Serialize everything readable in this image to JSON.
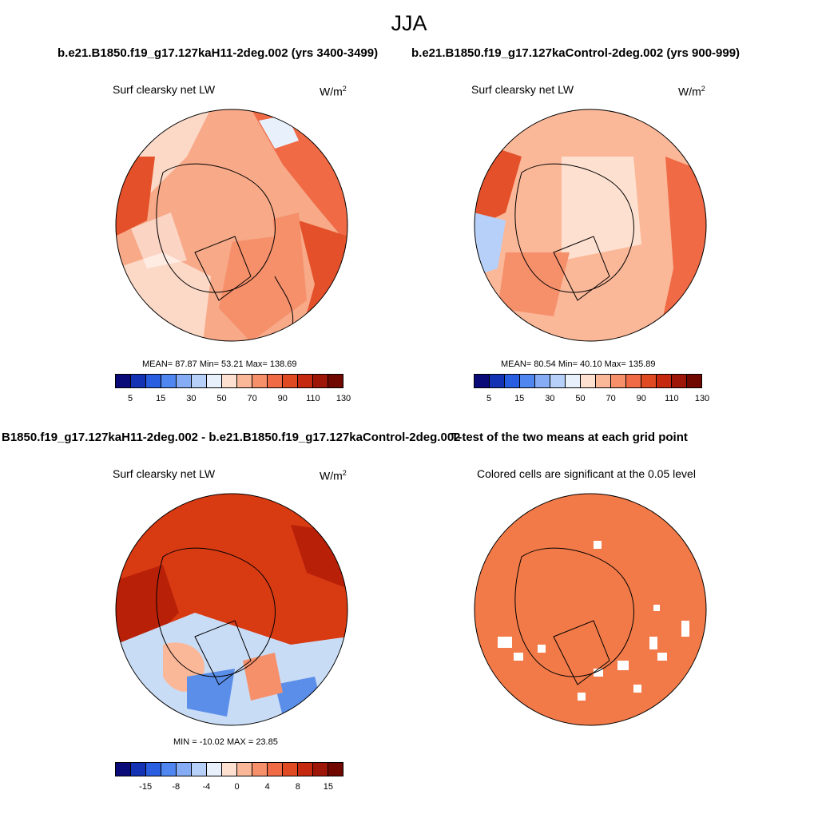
{
  "title": "JJA",
  "case_titles": {
    "left": "b.e21.B1850.f19_g17.127kaH11-2deg.002 (yrs 3400-3499)",
    "right": "b.e21.B1850.f19_g17.127kaControl-2deg.002 (yrs 900-999)",
    "diff": "B1850.f19_g17.127kaH11-2deg.002 - b.e21.B1850.f19_g17.127kaControl-2deg.002",
    "ttest": "T-test of the two means at each grid point"
  },
  "panels": {
    "top_left": {
      "label": "Surf clearsky net LW",
      "units": "W/m",
      "units_sup": "2",
      "stats": "MEAN=  87.87  Min=  53.21  Max= 138.69"
    },
    "top_right": {
      "label": "Surf clearsky net LW",
      "units": "W/m",
      "units_sup": "2",
      "stats": "MEAN=  80.54  Min=  40.10  Max= 135.89"
    },
    "bottom_left": {
      "label": "Surf clearsky net LW",
      "units": "W/m",
      "units_sup": "2",
      "stats": "MIN = -10.02 MAX =  23.85"
    },
    "bottom_right": {
      "label": "Colored cells are significant at the 0.05 level"
    }
  },
  "colorbars": {
    "abs": {
      "colors": [
        "#0a0a78",
        "#1433b4",
        "#2a5ee0",
        "#4f86f0",
        "#85acf5",
        "#b6d0fa",
        "#e8f0fb",
        "#fde0d0",
        "#fbb899",
        "#f6906b",
        "#ef6a45",
        "#e04a22",
        "#c52a10",
        "#9e1608",
        "#700800"
      ],
      "tick_labels": [
        "5",
        "15",
        "30",
        "50",
        "70",
        "90",
        "110",
        "130"
      ]
    },
    "diff": {
      "colors": [
        "#0a0a78",
        "#1433b4",
        "#2a5ee0",
        "#4f86f0",
        "#85acf5",
        "#b6d0fa",
        "#e8f0fb",
        "#fde0d0",
        "#fbb899",
        "#f6906b",
        "#ef6a45",
        "#e04a22",
        "#c52a10",
        "#9e1608",
        "#700800"
      ],
      "tick_labels": [
        "-15",
        "-8",
        "-4",
        "0",
        "4",
        "8",
        "15"
      ]
    }
  },
  "map_colors": {
    "ocean_warm": "#f08a60",
    "land_mid": "#f7a988",
    "pale": "#fcd9c7",
    "strong": "#e3502a",
    "diff_strong": "#d83a12",
    "diff_deep": "#b82008",
    "cool": "#c9dcf6",
    "cool_deep": "#5a8ee8",
    "ttest": "#f27a48"
  }
}
